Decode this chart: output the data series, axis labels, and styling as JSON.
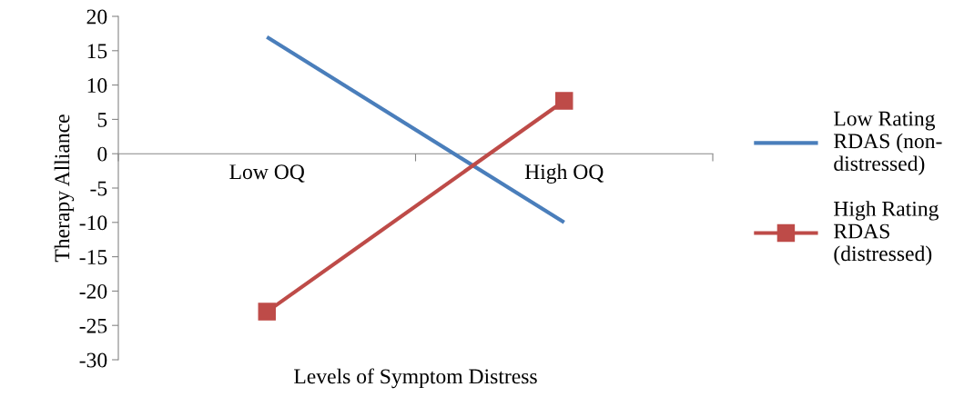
{
  "chart_data": {
    "type": "line",
    "xlabel": "Levels of Symptom Distress",
    "ylabel": "Therapy Alliance",
    "categories": [
      "Low OQ",
      "High OQ"
    ],
    "series": [
      {
        "name": "Low Rating RDAS (non-distressed)",
        "color": "#4a7ebb",
        "values": [
          17,
          -10
        ],
        "marker": "none"
      },
      {
        "name": "High Rating RDAS (distressed)",
        "color": "#be4b48",
        "values": [
          -23,
          7.7
        ],
        "marker": "square"
      }
    ],
    "ylim": [
      -30,
      20
    ],
    "yticks": [
      -30,
      -25,
      -20,
      -15,
      -10,
      -5,
      0,
      5,
      10,
      15,
      20
    ],
    "grid": false,
    "legend": "right"
  }
}
